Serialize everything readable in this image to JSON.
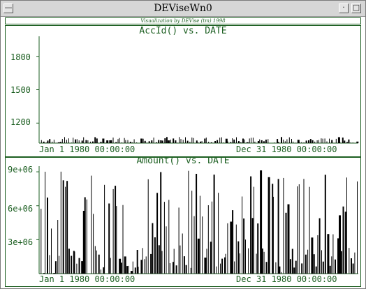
{
  "window": {
    "title": "DEViseWn0"
  },
  "banner": "Visualization by DEVise (tm) 1998",
  "colors": {
    "axis": "#1b5e20",
    "bar": "#000000"
  },
  "icons": {
    "minimize": "minimize-icon",
    "maximize": "maximize-icon"
  },
  "chart_data": [
    {
      "type": "bar",
      "title": "AccId() vs. DATE",
      "x_start_label": "Jan  1 1980 00:00:00",
      "x_end_label": "Dec 31 1980 00:00:00",
      "yticks": [
        "1800",
        "1500",
        "1200"
      ],
      "ytick_values": [
        1800,
        1500,
        1200
      ],
      "ylim": [
        1020,
        1980
      ],
      "seed": 7,
      "bar_count": 150,
      "value_range": [
        1020,
        1075
      ]
    },
    {
      "type": "bar",
      "title": "Amount() vs. DATE",
      "x_start_label": "Jan  1 1980 00:00:00",
      "x_end_label": "Dec 31 1980 00:00:00",
      "yticks": [
        "9e+06",
        "6e+06",
        "3e+06"
      ],
      "ytick_values": [
        9000000,
        6000000,
        3000000
      ],
      "ylim": [
        0,
        9500000
      ],
      "seed": 31,
      "bar_count": 160,
      "value_range": [
        0,
        9200000
      ]
    }
  ]
}
